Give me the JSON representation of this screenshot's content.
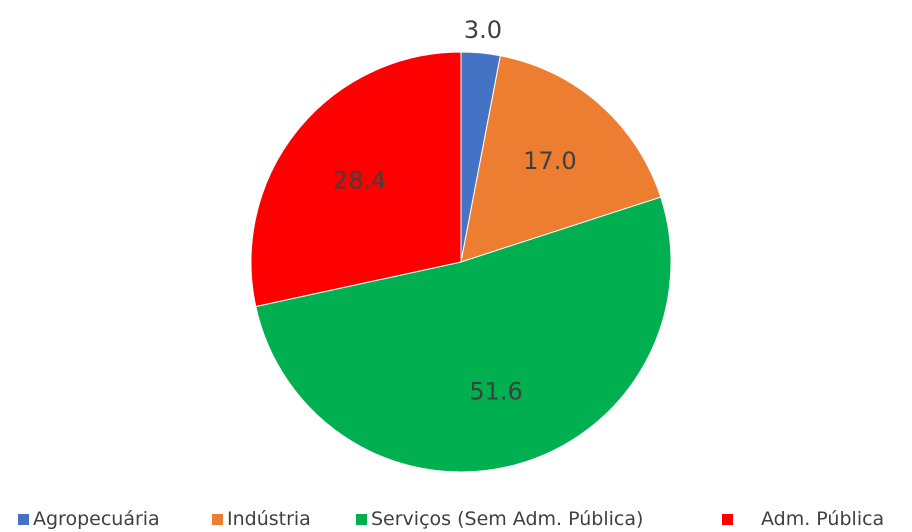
{
  "chart_data": {
    "type": "pie",
    "title": "",
    "slices": [
      {
        "label": "Agropecuária",
        "value": 3.0,
        "value_label": "3.0",
        "color": "#4472C4"
      },
      {
        "label": "Indústria",
        "value": 17.0,
        "value_label": "17.0",
        "color": "#ED7D31"
      },
      {
        "label": "Serviços (Sem Adm. Pública)",
        "value": 51.6,
        "value_label": "51.6",
        "color": "#00B050"
      },
      {
        "label": "Adm. Pública",
        "value": 28.4,
        "value_label": "28.4",
        "color": "#FF0000"
      }
    ],
    "start_angle_deg": 0,
    "direction": "clockwise",
    "legend_position": "bottom"
  }
}
